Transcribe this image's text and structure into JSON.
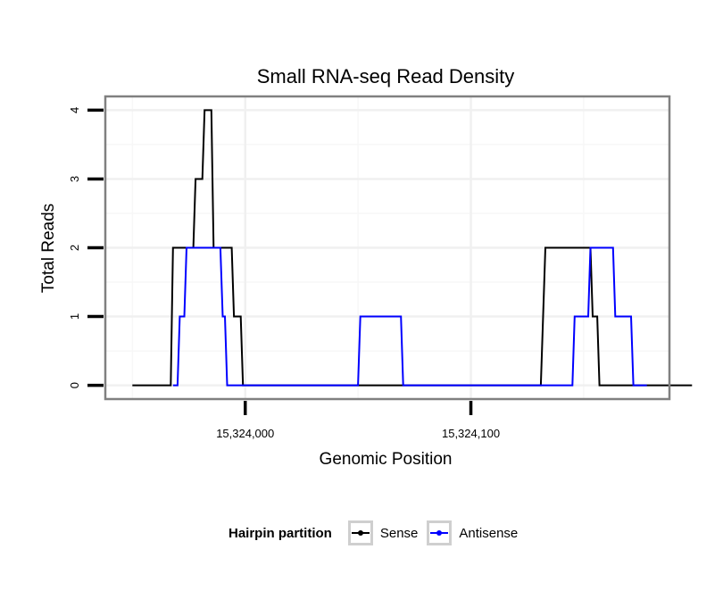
{
  "chart_data": {
    "type": "line",
    "title": "Small RNA-seq Read Density",
    "xlabel": "Genomic Position",
    "ylabel": "Total Reads",
    "xlim": [
      15323938,
      15324188
    ],
    "ylim": [
      -0.2,
      4.2
    ],
    "x_ticks": [
      15324000,
      15324100
    ],
    "x_tick_labels": [
      "15,324,000",
      "15,324,100"
    ],
    "y_ticks": [
      0,
      1,
      2,
      3,
      4
    ],
    "y_tick_labels": [
      "0",
      "1",
      "2",
      "3",
      "4"
    ],
    "grid": true,
    "legend_position": "bottom",
    "legend_title": "Hairpin partition",
    "series": [
      {
        "name": "Sense",
        "color": "#000000",
        "points": [
          [
            15323950,
            0
          ],
          [
            15323967,
            0
          ],
          [
            15323968,
            2
          ],
          [
            15323977,
            2
          ],
          [
            15323978,
            3
          ],
          [
            15323981,
            3
          ],
          [
            15323982,
            4
          ],
          [
            15323985,
            4
          ],
          [
            15323986,
            2
          ],
          [
            15323994,
            2
          ],
          [
            15323995,
            1
          ],
          [
            15323998,
            1
          ],
          [
            15323999,
            0
          ],
          [
            15324131,
            0
          ],
          [
            15324133,
            2
          ],
          [
            15324153,
            2
          ],
          [
            15324154,
            1
          ],
          [
            15324156,
            1
          ],
          [
            15324157,
            0
          ],
          [
            15324198,
            0
          ]
        ]
      },
      {
        "name": "Antisense",
        "color": "#0000ff",
        "points": [
          [
            15323968,
            0
          ],
          [
            15323970,
            0
          ],
          [
            15323971,
            1
          ],
          [
            15323973,
            1
          ],
          [
            15323974,
            2
          ],
          [
            15323989,
            2
          ],
          [
            15323990,
            1
          ],
          [
            15323991,
            1
          ],
          [
            15323992,
            0
          ],
          [
            15323997,
            0
          ],
          [
            15324050,
            0
          ],
          [
            15324051,
            1
          ],
          [
            15324069,
            1
          ],
          [
            15324070,
            0
          ],
          [
            15324145,
            0
          ],
          [
            15324146,
            1
          ],
          [
            15324152,
            1
          ],
          [
            15324153,
            2
          ],
          [
            15324163,
            2
          ],
          [
            15324164,
            1
          ],
          [
            15324171,
            1
          ],
          [
            15324172,
            0
          ],
          [
            15324178,
            0
          ]
        ]
      }
    ]
  }
}
